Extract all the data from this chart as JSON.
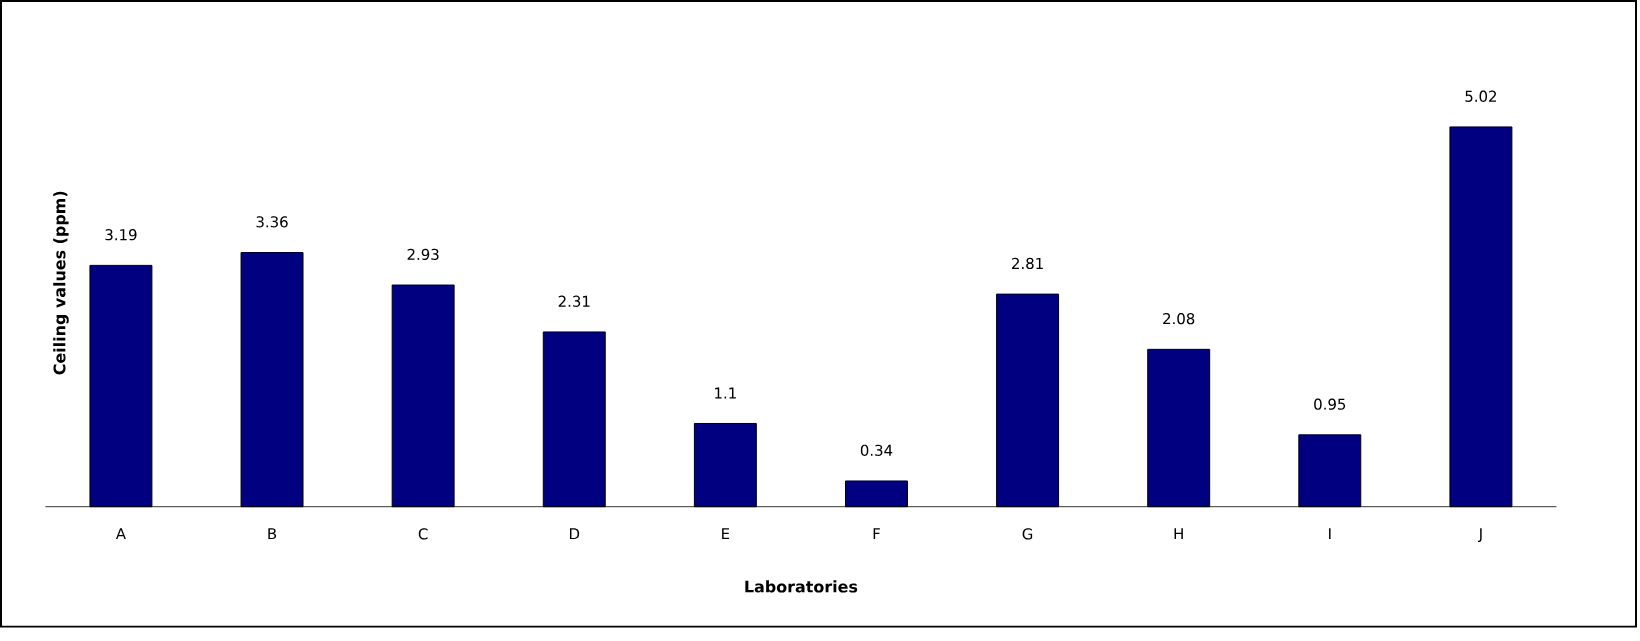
{
  "chart_data": {
    "type": "bar",
    "xlabel": "Laboratories",
    "ylabel": "Ceiling values (ppm)",
    "categories": [
      "A",
      "B",
      "C",
      "D",
      "E",
      "F",
      "G",
      "H",
      "I",
      "J"
    ],
    "values": [
      3.19,
      3.36,
      2.93,
      2.31,
      1.1,
      0.34,
      2.81,
      2.08,
      0.95,
      5.02
    ],
    "color": "#000080",
    "data_labels": true
  }
}
